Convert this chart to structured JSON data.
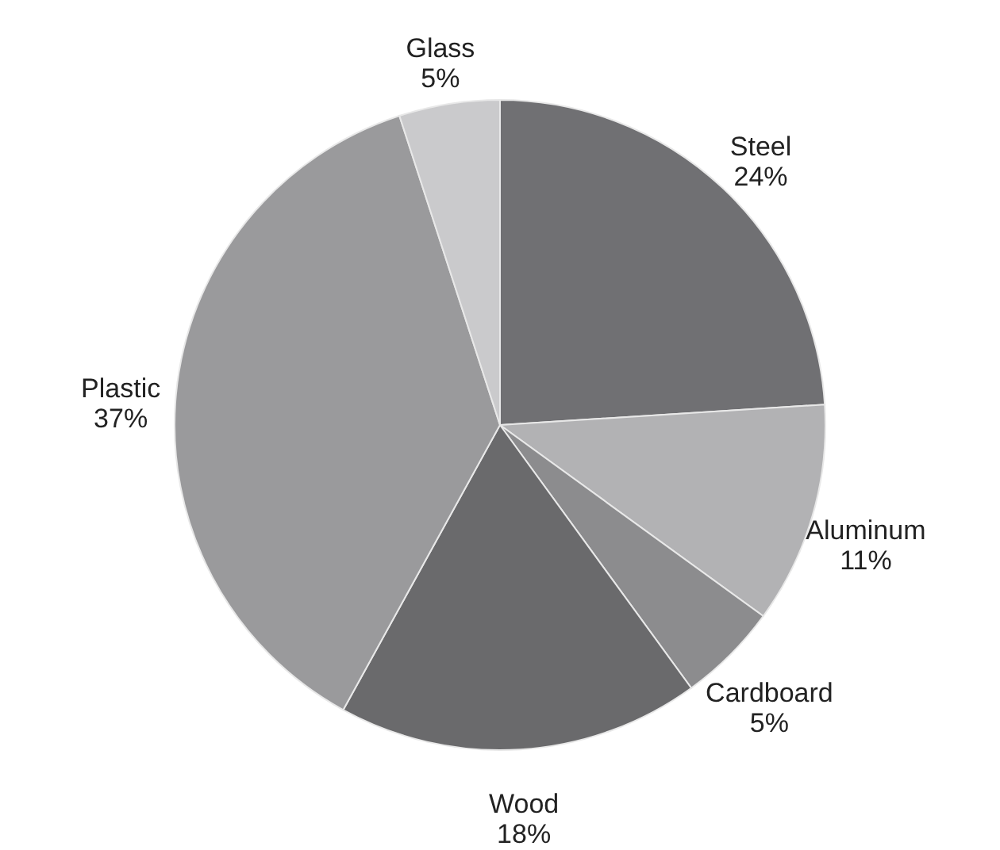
{
  "chart_data": {
    "type": "pie",
    "categories": [
      "Steel",
      "Aluminum",
      "Cardboard",
      "Wood",
      "Plastic",
      "Glass"
    ],
    "values": [
      24,
      11,
      5,
      18,
      37,
      5
    ],
    "colors": [
      "#707073",
      "#b2b2b4",
      "#8c8c8e",
      "#6a6a6c",
      "#9a9a9c",
      "#cacacc"
    ],
    "value_labels": [
      "24%",
      "11%",
      "5%",
      "18%",
      "37%",
      "5%"
    ],
    "legend": false
  }
}
